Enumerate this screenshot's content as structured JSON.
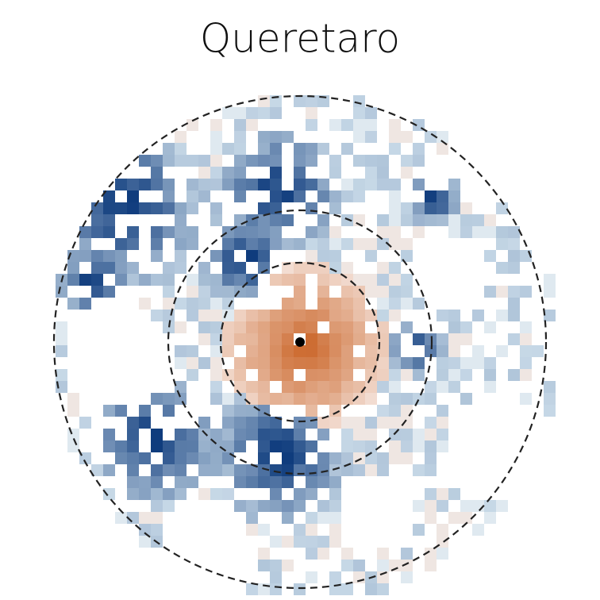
{
  "header": {
    "title": "Queretaro"
  }
}
